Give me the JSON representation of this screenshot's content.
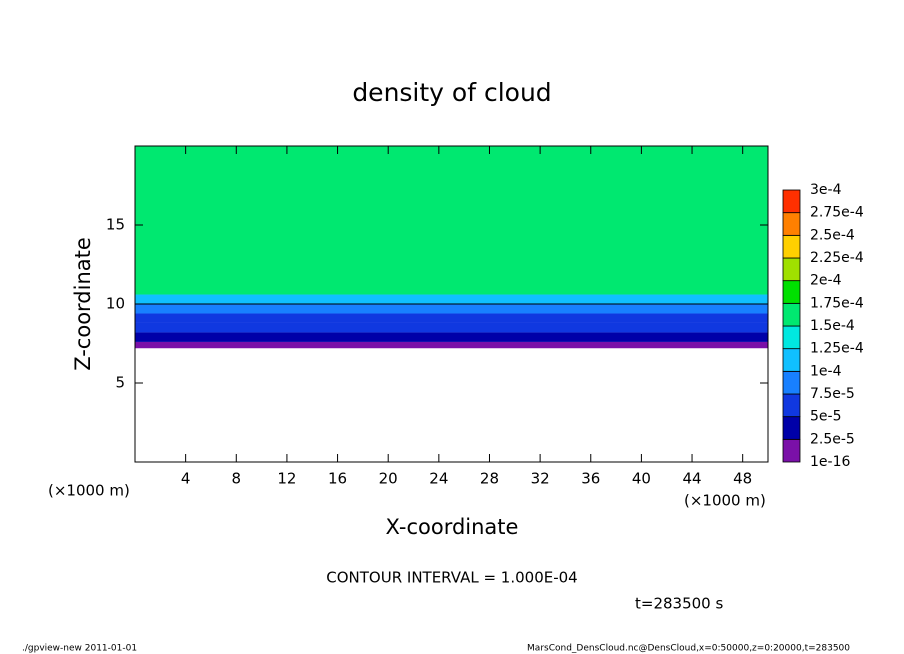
{
  "chart_data": {
    "type": "contour",
    "title": "density of cloud",
    "xlabel": "X-coordinate",
    "ylabel": "Z-coordinate",
    "unit_label": "(×1000 m)",
    "xlim": [
      0,
      50
    ],
    "ylim": [
      0,
      20
    ],
    "xticks": [
      4,
      8,
      12,
      16,
      20,
      24,
      28,
      32,
      36,
      40,
      44,
      48
    ],
    "yticks": [
      5,
      10,
      15
    ],
    "bands": [
      {
        "z": [
          7.2,
          7.6
        ],
        "value": 1.2e-05
      },
      {
        "z": [
          7.6,
          8.2
        ],
        "value": 3.5e-05
      },
      {
        "z": [
          8.2,
          8.8
        ],
        "value": 5.5e-05
      },
      {
        "z": [
          8.8,
          9.4
        ],
        "value": 7e-05
      },
      {
        "z": [
          9.4,
          10.0
        ],
        "value": 9e-05
      },
      {
        "z": [
          10.0,
          10.6
        ],
        "value": 0.00011
      },
      {
        "z": [
          10.6,
          20
        ],
        "value": 0.00016
      }
    ],
    "contour_interval": 0.0001,
    "contour_interval_text": "CONTOUR INTERVAL = 1.000E-04",
    "time_label": "t=283500 s",
    "colorbar": {
      "levels": [
        {
          "value": 1e-16,
          "label": "1e-16"
        },
        {
          "value": 2.5e-05,
          "label": "2.5e-5"
        },
        {
          "value": 5e-05,
          "label": "5e-5"
        },
        {
          "value": 7.5e-05,
          "label": "7.5e-5"
        },
        {
          "value": 0.0001,
          "label": "1e-4"
        },
        {
          "value": 0.000125,
          "label": "1.25e-4"
        },
        {
          "value": 0.00015,
          "label": "1.5e-4"
        },
        {
          "value": 0.000175,
          "label": "1.75e-4"
        },
        {
          "value": 0.0002,
          "label": "2e-4"
        },
        {
          "value": 0.000225,
          "label": "2.25e-4"
        },
        {
          "value": 0.00025,
          "label": "2.5e-4"
        },
        {
          "value": 0.000275,
          "label": "2.75e-4"
        },
        {
          "value": 0.0003,
          "label": "3e-4"
        }
      ],
      "colors": [
        "#7a10a8",
        "#0000a8",
        "#1038e0",
        "#1880ff",
        "#10c0ff",
        "#00e8e0",
        "#00e870",
        "#00e000",
        "#a0e000",
        "#ffd000",
        "#ff8000",
        "#ff3000"
      ]
    }
  },
  "footer": {
    "left": "./gpview-new   2011-01-01",
    "right": "MarsCond_DensCloud.nc@DensCloud,x=0:50000,z=0:20000,t=283500"
  }
}
